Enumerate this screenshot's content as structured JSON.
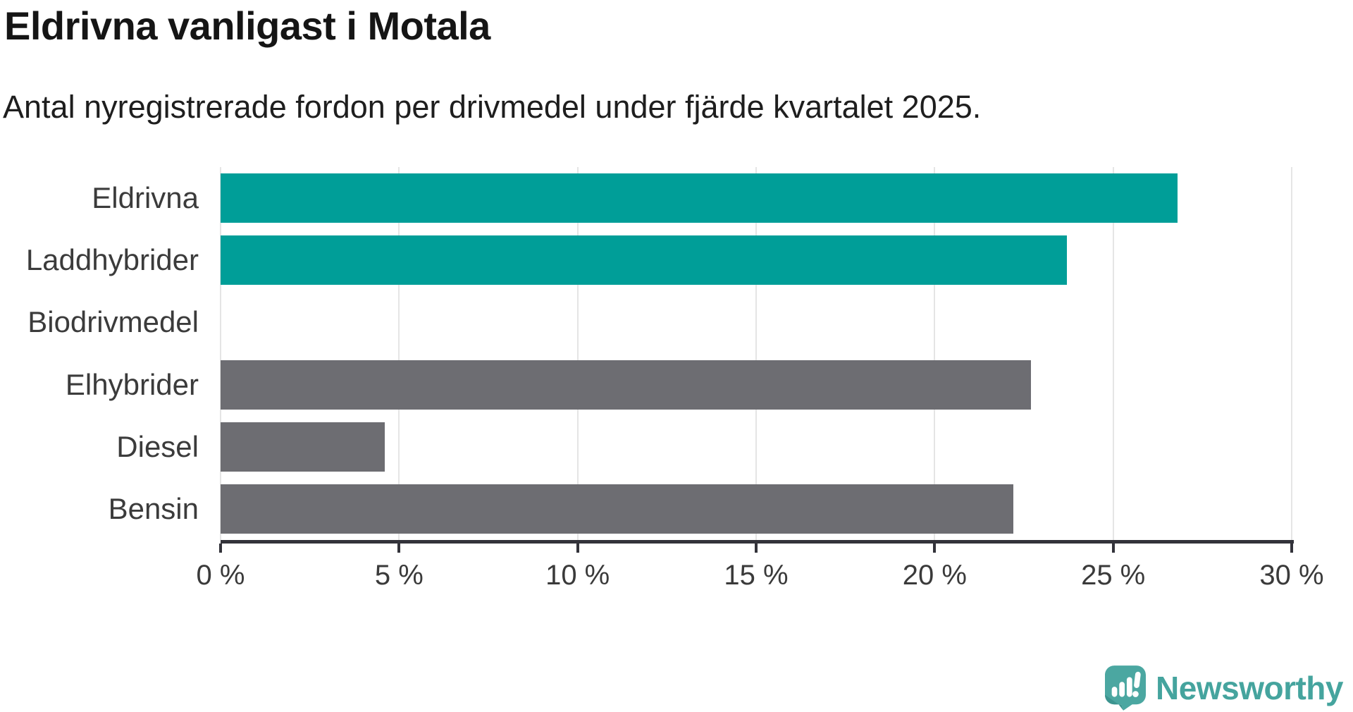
{
  "header": {
    "title": "Eldrivna vanligast i Motala",
    "subtitle": "Antal nyregistrerade fordon per drivmedel under fjärde kvartalet 2025."
  },
  "chart_data": {
    "type": "bar",
    "orientation": "horizontal",
    "title": "Eldrivna vanligast i Motala",
    "subtitle": "Antal nyregistrerade fordon per drivmedel under fjärde kvartalet 2025.",
    "categories": [
      "Eldrivna",
      "Laddhybrider",
      "Biodrivmedel",
      "Elhybrider",
      "Diesel",
      "Bensin"
    ],
    "values": [
      26.8,
      23.7,
      0,
      22.7,
      4.6,
      22.2
    ],
    "unit": "%",
    "bar_colors": [
      "#009e98",
      "#009e98",
      "#009e98",
      "#6d6d72",
      "#6d6d72",
      "#6d6d72"
    ],
    "xlabel": "",
    "ylabel": "",
    "xlim": [
      0,
      30
    ],
    "x_ticks": [
      0,
      5,
      10,
      15,
      20,
      25,
      30
    ],
    "x_tick_labels": [
      "0 %",
      "5 %",
      "10 %",
      "15 %",
      "20 %",
      "25 %",
      "30 %"
    ],
    "grid": true,
    "legend_position": "none"
  },
  "colors": {
    "accent_teal": "#009e98",
    "neutral_gray": "#6d6d72",
    "axis": "#33333a",
    "gridline": "#e5e5e5",
    "title_text": "#151515",
    "label_text": "#3b3b3b"
  },
  "logo": {
    "name": "Newsworthy",
    "text": "Newsworthy",
    "color": "#45a49e",
    "icon": "newsworthy-speech-bubble-barchart-icon"
  }
}
